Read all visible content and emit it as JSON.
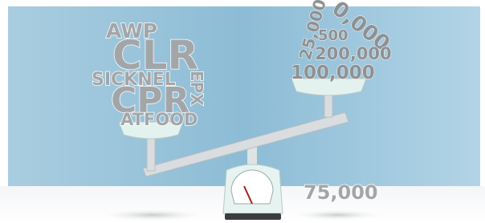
{
  "left_words": [
    "AWP",
    "CLR",
    "SICKNEL",
    "EPX",
    "CPR",
    "ATFOOD"
  ],
  "right_numbers": [
    "25,000",
    "0,000",
    "500",
    "200,000",
    "100,000"
  ],
  "floor_number": "75,000"
}
